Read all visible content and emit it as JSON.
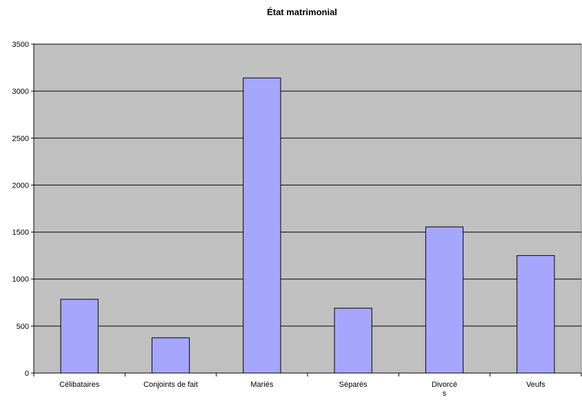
{
  "chart_data": {
    "type": "bar",
    "title": "État matrimonial",
    "xlabel": "",
    "ylabel": "",
    "categories": [
      "Célibataires",
      "Conjoints de fait",
      "Mariés",
      "Séparés",
      "Divorcés",
      "Veufs"
    ],
    "category_label_lines": [
      [
        "Célibataires"
      ],
      [
        "Conjoints de fait"
      ],
      [
        "Mariés"
      ],
      [
        "Séparés"
      ],
      [
        "Divorcé",
        "s"
      ],
      [
        "Veufs"
      ]
    ],
    "values": [
      785,
      375,
      3140,
      690,
      1555,
      1250
    ],
    "ylim": [
      0,
      3500
    ],
    "yticks": [
      0,
      500,
      1000,
      1500,
      2000,
      2500,
      3000,
      3500
    ],
    "grid": true,
    "legend": "none"
  },
  "colors": {
    "plot_background": "#c0c0c0",
    "bar_fill": "#a6a6ff",
    "bar_stroke": "#000000",
    "gridline": "#000000"
  }
}
